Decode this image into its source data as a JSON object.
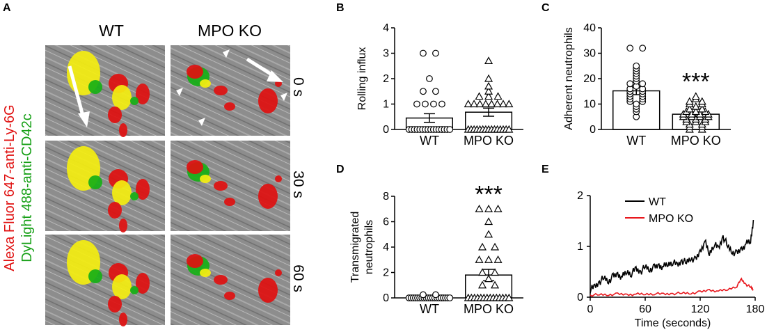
{
  "panel_letters": [
    "A",
    "B",
    "C",
    "D",
    "E"
  ],
  "panel_a": {
    "conditions": [
      "WT",
      "MPO KO"
    ],
    "timepoints": [
      "0 s",
      "30 s",
      "60 s"
    ],
    "label_red": "Alexa Fluor 647-anti-Ly-6G",
    "label_green": "DyLight 488-anti-CD42c",
    "colors": {
      "red_stain": "#e01010",
      "green_stain": "#16b016",
      "overlap": "#f4ee10"
    }
  },
  "chart_data": [
    {
      "id": "B",
      "type": "scatter",
      "ylabel": "Rolling influx",
      "ylim": [
        0,
        4
      ],
      "yticks": [
        "0",
        "1",
        "2",
        "3",
        "4"
      ],
      "categories": [
        "WT",
        "MPO KO"
      ],
      "markers": [
        "circle",
        "triangle"
      ],
      "means": [
        0.45,
        0.68
      ],
      "sem": [
        0.17,
        0.16
      ],
      "points": [
        [
          0,
          0,
          0,
          0,
          0,
          0,
          0,
          0,
          0,
          0,
          0,
          0,
          0,
          0,
          0,
          0,
          1,
          1,
          1,
          1,
          1.5,
          1.5,
          2,
          3,
          3
        ],
        [
          0,
          0,
          0,
          0,
          0,
          0,
          0,
          0,
          0,
          0,
          0,
          0,
          0,
          0,
          0,
          1,
          1,
          1,
          1,
          1,
          1,
          1,
          1,
          1.3,
          1.3,
          1.3,
          1.5,
          1.7,
          2,
          2.7
        ]
      ]
    },
    {
      "id": "C",
      "type": "scatter",
      "ylabel": "Adherent neutrophils",
      "ylim": [
        0,
        40
      ],
      "yticks": [
        "0",
        "10",
        "20",
        "30",
        "40"
      ],
      "categories": [
        "WT",
        "MPO KO"
      ],
      "markers": [
        "circle",
        "triangle"
      ],
      "means": [
        15.2,
        6.0
      ],
      "sem": [
        1.5,
        0.9
      ],
      "annotation": "***",
      "points": [
        [
          5,
          7,
          8,
          9,
          10,
          11,
          11,
          12,
          12,
          13,
          13,
          14,
          14,
          15,
          15,
          16,
          16,
          17,
          18,
          18,
          19,
          20,
          21,
          22,
          23,
          24,
          25,
          32,
          32
        ],
        [
          0,
          0,
          1,
          1,
          2,
          2,
          3,
          3,
          3,
          4,
          4,
          4,
          5,
          5,
          5,
          5,
          6,
          6,
          6,
          6,
          7,
          7,
          7,
          8,
          8,
          9,
          10,
          10,
          11,
          11,
          12,
          13
        ]
      ]
    },
    {
      "id": "D",
      "type": "scatter",
      "ylabel": "Transmigrated neutrophils",
      "ylim": [
        0,
        8
      ],
      "yticks": [
        "0",
        "2",
        "4",
        "6",
        "8"
      ],
      "categories": [
        "WT",
        "MPO KO"
      ],
      "markers": [
        "circle",
        "triangle"
      ],
      "means": [
        0.05,
        1.8
      ],
      "sem": [
        0.03,
        0.45
      ],
      "annotation": "***",
      "points": [
        [
          0,
          0,
          0,
          0,
          0,
          0,
          0,
          0,
          0,
          0,
          0,
          0,
          0,
          0,
          0,
          0,
          0,
          0,
          0,
          0,
          0.25,
          0.25
        ],
        [
          0,
          0,
          0,
          0,
          0,
          0,
          0,
          0,
          0,
          0,
          0,
          0,
          0,
          0,
          1,
          1,
          1.5,
          2,
          2,
          3,
          3,
          3,
          4,
          4,
          5,
          6,
          7,
          7,
          7
        ]
      ]
    },
    {
      "id": "E",
      "type": "line",
      "xlabel": "Time (seconds)",
      "xlim": [
        0,
        180
      ],
      "ylim": [
        0,
        2
      ],
      "xticks": [
        "0",
        "60",
        "120",
        "180"
      ],
      "yticks": [
        "0",
        "1",
        "2"
      ],
      "legend_position": "top-left",
      "series": [
        {
          "name": "WT",
          "color": "#000000",
          "x": [
            0,
            5,
            10,
            15,
            20,
            25,
            30,
            35,
            40,
            45,
            50,
            55,
            60,
            65,
            70,
            75,
            80,
            85,
            90,
            95,
            100,
            105,
            110,
            115,
            120,
            125,
            130,
            135,
            140,
            145,
            150,
            155,
            160,
            165,
            170,
            175,
            178
          ],
          "y": [
            0.15,
            0.2,
            0.3,
            0.38,
            0.32,
            0.4,
            0.45,
            0.4,
            0.5,
            0.47,
            0.55,
            0.5,
            0.6,
            0.55,
            0.58,
            0.62,
            0.6,
            0.65,
            0.7,
            0.62,
            0.72,
            0.68,
            0.78,
            0.72,
            0.9,
            1.1,
            0.85,
            1.05,
            0.95,
            1.2,
            1.0,
            0.9,
            0.85,
            0.95,
            1.05,
            1.1,
            1.52
          ]
        },
        {
          "name": "MPO KO",
          "color": "#e8161c",
          "x": [
            0,
            10,
            20,
            30,
            40,
            50,
            60,
            70,
            80,
            90,
            100,
            110,
            120,
            130,
            140,
            150,
            160,
            165,
            170,
            175,
            178
          ],
          "y": [
            0.04,
            0.05,
            0.05,
            0.06,
            0.05,
            0.06,
            0.06,
            0.07,
            0.06,
            0.07,
            0.08,
            0.08,
            0.1,
            0.14,
            0.12,
            0.15,
            0.22,
            0.35,
            0.25,
            0.2,
            0.15
          ]
        }
      ]
    }
  ]
}
